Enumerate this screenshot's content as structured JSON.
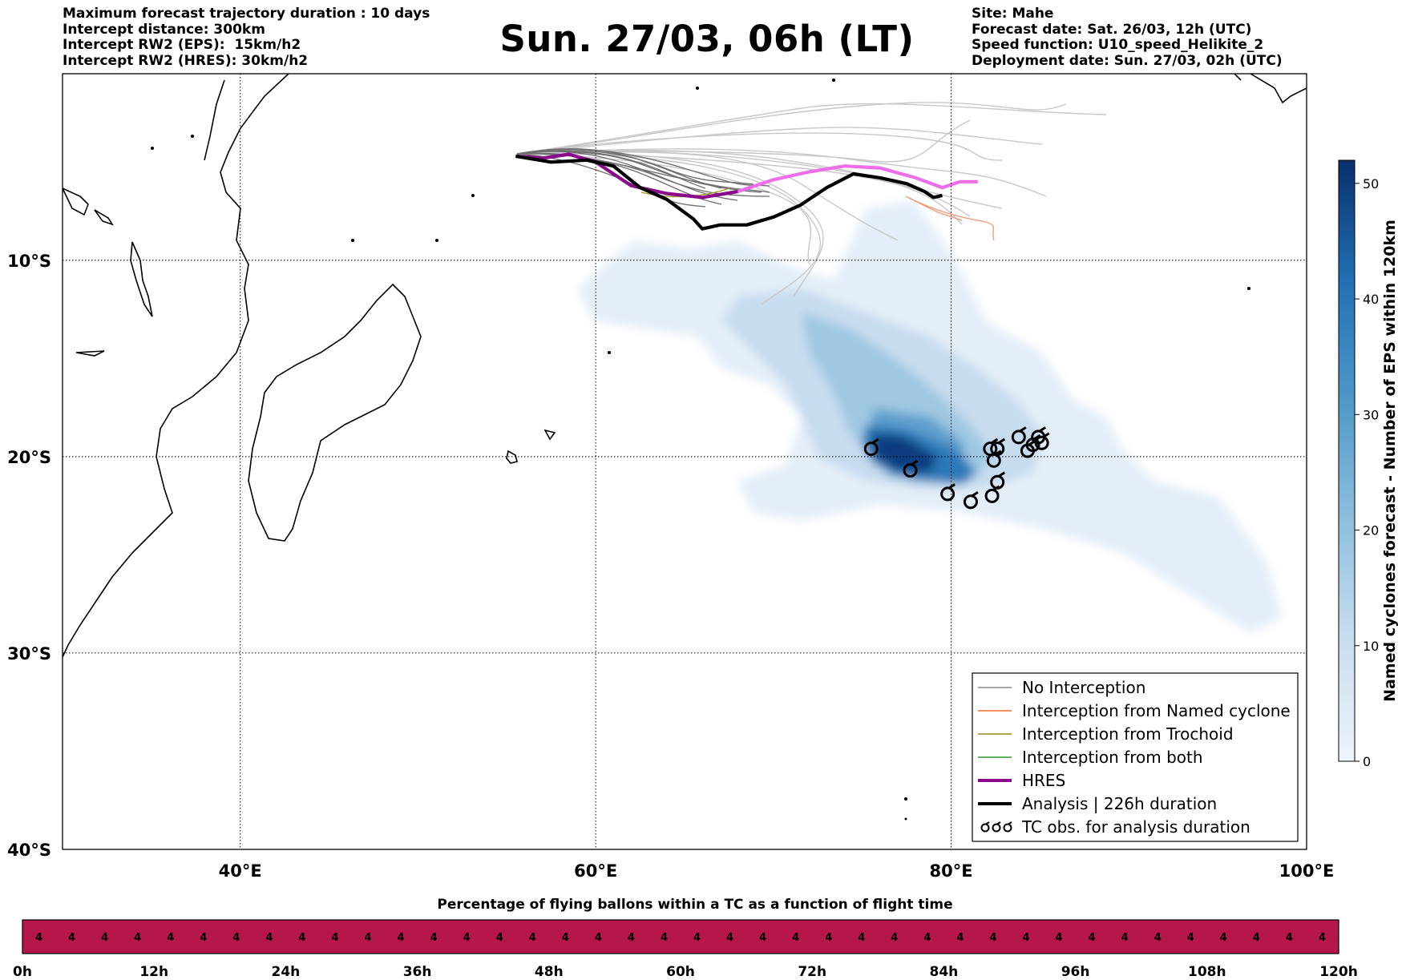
{
  "header": {
    "left_lines": [
      "Maximum forecast trajectory duration : 10 days",
      "Intercept distance: 300km",
      "Intercept RW2 (EPS):  15km/h2",
      "Intercept RW2 (HRES): 30km/h2"
    ],
    "title": "Sun. 27/03, 06h (LT)",
    "right_lines": [
      "Site: Mahe",
      "Forecast date: Sat. 26/03, 12h (UTC)",
      "Speed function: U10_speed_Helikite_2",
      "Deployment date: Sun. 27/03, 02h (UTC)"
    ]
  },
  "chart_data": [
    {
      "type": "line",
      "map_projection": "cylindrical",
      "xlim": [
        30,
        100
      ],
      "ylim": [
        -40,
        -0.5
      ],
      "x_ticks": [
        40,
        60,
        80,
        100
      ],
      "x_tick_labels": [
        "40°E",
        "60°E",
        "80°E",
        "100°E"
      ],
      "y_ticks": [
        -10,
        -20,
        -30,
        -40
      ],
      "y_tick_labels": [
        "10°S",
        "20°S",
        "30°S",
        "40°S"
      ],
      "grid": true,
      "grid_style": "dotted",
      "legend_position": "lower-right",
      "legend": [
        {
          "label": "No Interception",
          "color": "#8c8c8c",
          "style": "thin"
        },
        {
          "label": "Interception from Named cyclone",
          "color": "#f06a2a",
          "style": "thin"
        },
        {
          "label": "Interception from Trochoid",
          "color": "#9a8a1e",
          "style": "thin"
        },
        {
          "label": "Interception from both",
          "color": "#2a9a2a",
          "style": "thin"
        },
        {
          "label": "HRES",
          "color": "#8b0a8b",
          "style": "thick"
        },
        {
          "label": "Analysis | 226h duration",
          "color": "#000000",
          "style": "thick"
        },
        {
          "label": "TC obs. for analysis duration",
          "color": "#000000",
          "style": "cyclone-symbols"
        }
      ],
      "series": [
        {
          "name": "HRES",
          "color": "#8b0a8b",
          "highlight_color": "#ee6ee8",
          "x": [
            55.5,
            57,
            58.5,
            60,
            62,
            64,
            66,
            68,
            70,
            72,
            74,
            76,
            78,
            79.5,
            80.5,
            81.5
          ],
          "y": [
            -4.7,
            -4.8,
            -4.6,
            -5.0,
            -6.2,
            -6.6,
            -6.8,
            -6.5,
            -5.9,
            -5.5,
            -5.2,
            -5.3,
            -5.8,
            -6.3,
            -6.0,
            -6.0
          ]
        },
        {
          "name": "Analysis | 226h duration",
          "color": "#000000",
          "x": [
            55.5,
            57.5,
            59.5,
            61,
            62.5,
            64,
            65.5,
            66,
            67,
            68.5,
            70,
            71.5,
            73,
            74.5,
            76,
            77.5,
            78.5,
            79,
            79.5
          ],
          "y": [
            -4.7,
            -5.0,
            -4.9,
            -5.2,
            -6.3,
            -6.9,
            -7.9,
            -8.4,
            -8.2,
            -8.2,
            -7.8,
            -7.2,
            -6.3,
            -5.6,
            -5.8,
            -6.1,
            -6.5,
            -6.8,
            -6.7
          ]
        }
      ],
      "tc_obs": {
        "x": [
          75.5,
          77.7,
          79.8,
          81.1,
          82.3,
          82.6,
          82.4,
          82.2,
          82.6,
          83.8,
          84.3,
          84.6,
          84.9,
          85.1
        ],
        "y": [
          -19.6,
          -20.7,
          -21.9,
          -22.3,
          -22.0,
          -21.3,
          -20.2,
          -19.6,
          -19.6,
          -19.0,
          -19.7,
          -19.4,
          -19.0,
          -19.3
        ]
      },
      "density_colorbar": {
        "label": "Named cyclones forecast - Number of EPS within 120km",
        "range": [
          0,
          52
        ],
        "ticks": [
          0,
          10,
          20,
          30,
          40,
          50
        ],
        "colors": [
          "#eef4fb",
          "#c9ddf0",
          "#8ec0de",
          "#4f98c8",
          "#2170b5",
          "#08306b"
        ]
      }
    },
    {
      "type": "heatmap",
      "title": "Percentage of flying ballons within a TC as a function of flight time",
      "x_ticks": [
        0,
        12,
        24,
        36,
        48,
        60,
        72,
        84,
        96,
        108,
        120
      ],
      "x_tick_labels": [
        "0h",
        "12h",
        "24h",
        "36h",
        "48h",
        "60h",
        "72h",
        "84h",
        "96h",
        "108h",
        "120h"
      ],
      "cell_count": 40,
      "values": [
        4,
        4,
        4,
        4,
        4,
        4,
        4,
        4,
        4,
        4,
        4,
        4,
        4,
        4,
        4,
        4,
        4,
        4,
        4,
        4,
        4,
        4,
        4,
        4,
        4,
        4,
        4,
        4,
        4,
        4,
        4,
        4,
        4,
        4,
        4,
        4,
        4,
        4,
        4,
        4
      ],
      "cell_color": "#b5174a"
    }
  ]
}
